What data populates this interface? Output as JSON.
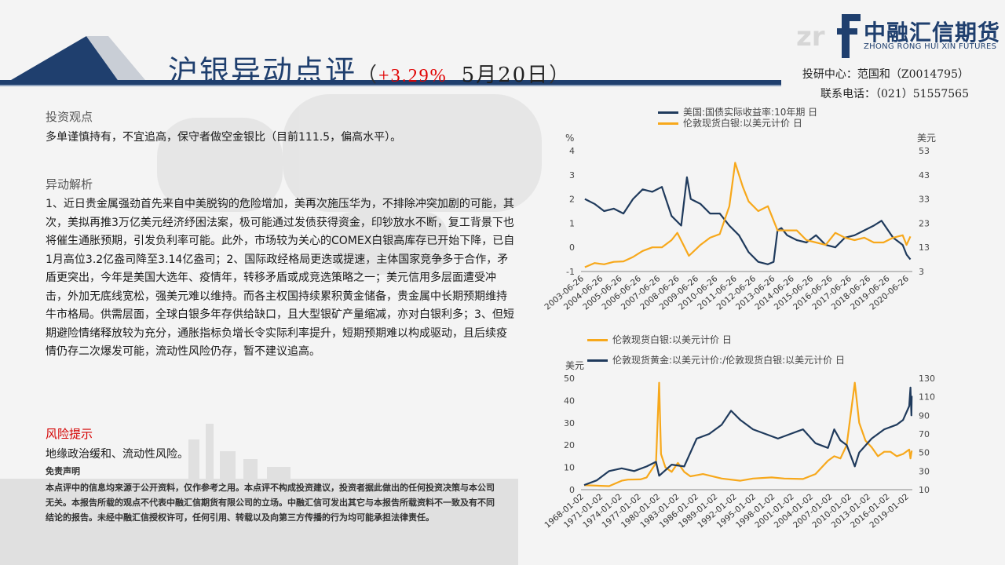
{
  "header": {
    "title": "沪银异动点评",
    "paren_open": "（",
    "change": "+3.29%",
    "date": "5月20日",
    "paren_close": "）"
  },
  "logo": {
    "cn": "中融汇信期货",
    "en": "ZHONG RONG HUI XIN FUTURES"
  },
  "contact": {
    "line1": "投研中心：范国和（Z0014795）",
    "line2": "联系电话：（021）51557565"
  },
  "sections": {
    "view_title": "投资观点",
    "view_text": "多单谨慎持有，不宜追高，保守者做空金银比（目前111.5，偏高水平）。",
    "analysis_title": "异动解析",
    "analysis_text": "1、近日贵金属强劲首先来自中美脱钩的危险增加，美再次施压华为，不排除冲突加剧的可能，其次，美拟再推3万亿美元经济纾困法案，极可能通过发债获得资金，印钞放水不断，复工背景下也将催生通胀预期，引发负利率可能。此外，市场较为关心的COMEX白银高库存已开始下降，已自1月高位3.2亿盎司降至3.14亿盎司；2、国际政经格局更迭或提速，主体国家竞争多于合作，矛盾更突出，今年是美国大选年、疫情年，转移矛盾或成竞选策略之一；美元信用多层面遭受冲击，外加无底线宽松，强美元难以维持。而各主权国持续累积黄金储备，贵金属中长期预期维持牛市格局。供需层面，全球白银多年存供给缺口，且大型银矿产量缩减，亦对白银利多；3、但短期避险情绪释放较为充分，通胀指标负增长令实际利率提升，短期预期难以构成驱动，且后续疫情仍存二次爆发可能，流动性风险仍存，暂不建议追高。",
    "risk_title": "风险提示",
    "risk_text": "地缘政治缓和、流动性风险。",
    "disclaimer_title": "免责声明",
    "disclaimer_text": "本点评中的信息均来源于公开资料，仅作参考之用。本点评不构成投资建议，投资者据此做出的任何投资决策与本公司无关。本报告所载的观点不代表中融汇信期货有限公司的立场。中融汇信可发出其它与本报告所载资料不一致及有不同结论的报告。未经中融汇信授权许可，任何引用、转载以及向第三方传播的行为均可能承担法律责任。"
  },
  "colors": {
    "navy": "#1f3f6e",
    "gold": "#f7a81b",
    "red": "#e00000"
  },
  "chart_data": [
    {
      "type": "line",
      "series": [
        {
          "name": "美国:国债实际收益率:10年期 日",
          "axis": "left",
          "color": "#1f3a5c",
          "x": [
            2003.5,
            2004.0,
            2004.5,
            2005.0,
            2005.5,
            2006.0,
            2006.5,
            2007.0,
            2007.5,
            2008.0,
            2008.5,
            2008.8,
            2009.0,
            2009.5,
            2010.0,
            2010.5,
            2011.0,
            2011.5,
            2012.0,
            2012.5,
            2013.0,
            2013.3,
            2013.5,
            2013.7,
            2014.0,
            2014.5,
            2015.0,
            2015.5,
            2016.0,
            2016.5,
            2017.0,
            2017.5,
            2018.0,
            2018.5,
            2018.9,
            2019.5,
            2020.0,
            2020.2,
            2020.4
          ],
          "y": [
            2.0,
            1.8,
            1.5,
            1.6,
            1.4,
            2.0,
            2.4,
            2.3,
            2.5,
            1.3,
            0.9,
            2.9,
            2.0,
            1.8,
            1.4,
            1.4,
            0.9,
            0.5,
            -0.2,
            -0.6,
            -0.7,
            -0.6,
            0.7,
            0.8,
            0.5,
            0.3,
            0.2,
            0.5,
            0.1,
            0.0,
            0.4,
            0.5,
            0.7,
            0.9,
            1.1,
            0.4,
            0.1,
            -0.3,
            -0.5
          ]
        },
        {
          "name": "伦敦现货白银:以美元计价 日",
          "axis": "right",
          "color": "#f7a81b",
          "x": [
            2003.5,
            2004.0,
            2004.5,
            2005.0,
            2005.5,
            2006.0,
            2006.5,
            2007.0,
            2007.5,
            2008.0,
            2008.3,
            2008.9,
            2009.5,
            2010.0,
            2010.5,
            2011.0,
            2011.3,
            2011.7,
            2012.0,
            2012.5,
            2013.0,
            2013.5,
            2014.0,
            2014.5,
            2015.0,
            2015.5,
            2016.0,
            2016.5,
            2017.0,
            2017.5,
            2018.0,
            2018.5,
            2019.0,
            2019.5,
            2020.0,
            2020.2,
            2020.4
          ],
          "y": [
            4.8,
            6.5,
            6.0,
            7.0,
            7.2,
            9.0,
            11.5,
            13.0,
            13.0,
            16.0,
            19.0,
            9.5,
            14.0,
            17.0,
            18.5,
            30.0,
            48.0,
            38.0,
            32.0,
            28.0,
            30.0,
            20.0,
            20.0,
            20.0,
            16.0,
            15.0,
            14.0,
            19.0,
            17.0,
            16.0,
            17.0,
            15.0,
            15.0,
            17.0,
            18.0,
            14.0,
            17.5
          ]
        }
      ],
      "ylabel": "%",
      "y2label": "美元",
      "ylim": [
        -1,
        4
      ],
      "y2lim": [
        3,
        53
      ],
      "yticks": [
        -1,
        0,
        1,
        2,
        3,
        4
      ],
      "y2ticks": [
        3,
        13,
        23,
        33,
        43,
        53
      ],
      "xtick_labels": [
        "2003-06-26",
        "2004-06-26",
        "2005-06-26",
        "2006-06-26",
        "2007-06-26",
        "2008-06-26",
        "2009-06-26",
        "2010-06-26",
        "2011-06-26",
        "2012-06-26",
        "2013-06-26",
        "2014-06-26",
        "2015-06-26",
        "2016-06-26",
        "2017-06-26",
        "2018-06-26",
        "2019-06-26",
        "2020-06-26"
      ],
      "legend": "top-left",
      "grid": false
    },
    {
      "type": "line",
      "series": [
        {
          "name": "伦敦现货白银:以美元计价 日",
          "axis": "left",
          "color": "#f7a81b",
          "x": [
            1968,
            1970,
            1972,
            1974,
            1975,
            1977,
            1978,
            1979.5,
            1980.0,
            1980.3,
            1981,
            1982,
            1983,
            1984,
            1985,
            1987,
            1990,
            1993,
            1995,
            1998,
            2000,
            2003,
            2005,
            2007,
            2008,
            2009,
            2010,
            2011.3,
            2012,
            2013,
            2014,
            2015,
            2016,
            2017,
            2018,
            2019,
            2020.0,
            2020.2,
            2020.4
          ],
          "y": [
            2.0,
            1.8,
            1.6,
            4.0,
            4.5,
            4.6,
            5.5,
            12.0,
            48.0,
            16.0,
            10.0,
            8.0,
            12.0,
            8.0,
            6.0,
            7.0,
            5.0,
            4.0,
            5.0,
            5.5,
            5.0,
            4.8,
            7.0,
            13.0,
            15.0,
            14.0,
            20.0,
            48.0,
            30.0,
            22.0,
            19.0,
            15.0,
            17.0,
            17.0,
            15.0,
            16.0,
            18.0,
            14.0,
            17.5
          ]
        },
        {
          "name": "伦敦现货黄金:以美元计价:/伦敦现货白银:以美元计价 日",
          "axis": "right",
          "color": "#1f3a5c",
          "x": [
            1968,
            1970,
            1972,
            1974,
            1976,
            1978,
            1979.5,
            1980,
            1982,
            1984,
            1986,
            1988,
            1990,
            1991.5,
            1993,
            1995,
            1997,
            1999,
            2001,
            2003,
            2005,
            2007,
            2008,
            2009,
            2010,
            2011.3,
            2012,
            2014,
            2016,
            2018,
            2019,
            2020.0,
            2020.2,
            2020.35,
            2020.4
          ],
          "y": [
            15,
            20,
            30,
            33,
            30,
            35,
            40,
            25,
            37,
            35,
            65,
            70,
            80,
            95,
            85,
            75,
            70,
            65,
            70,
            75,
            60,
            55,
            75,
            63,
            58,
            35,
            50,
            65,
            75,
            80,
            85,
            100,
            120,
            90,
            111
          ]
        }
      ],
      "ylabel": "美元",
      "ylim": [
        0,
        50
      ],
      "y2lim": [
        10,
        130
      ],
      "yticks": [
        0,
        10,
        20,
        30,
        40,
        50
      ],
      "y2ticks": [
        10,
        30,
        50,
        70,
        90,
        110,
        130
      ],
      "xtick_labels": [
        "1968-01-02",
        "1971-01-02",
        "1974-01-02",
        "1977-01-02",
        "1980-01-02",
        "1983-01-02",
        "1986-01-02",
        "1989-01-02",
        "1992-01-02",
        "1995-01-02",
        "1998-01-02",
        "2001-01-02",
        "2004-01-02",
        "2007-01-02",
        "2010-01-02",
        "2013-01-02",
        "2016-01-02",
        "2019-01-02"
      ],
      "legend": "top-left",
      "grid": false
    }
  ]
}
